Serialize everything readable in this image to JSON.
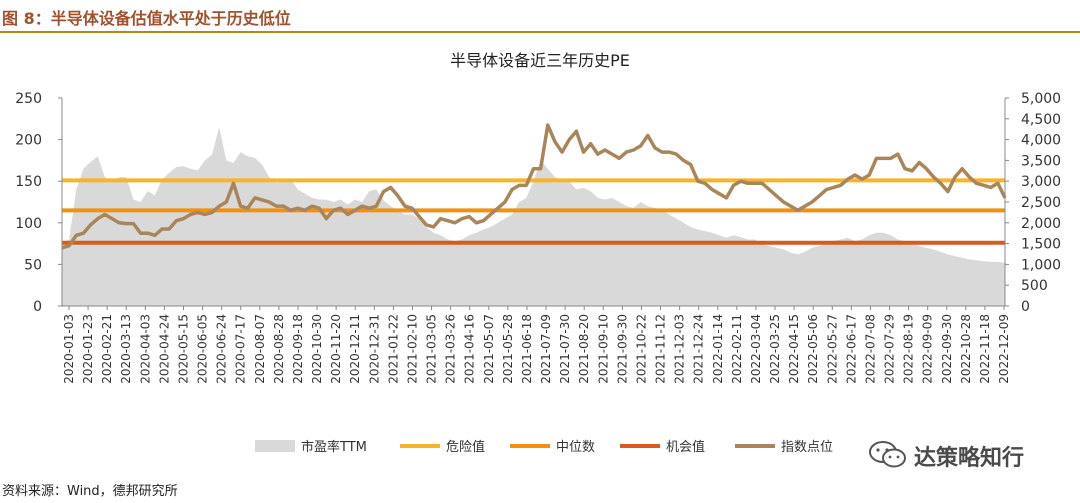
{
  "figure": {
    "title": "图 8：半导体设备估值水平处于历史低位",
    "source": "资料来源：Wind，德邦研究所",
    "watermark": "达策略知行"
  },
  "chart_data": {
    "type": "line",
    "title": "半导体设备近三年历史PE",
    "x_tick_labels": [
      "2020-01-03",
      "2020-01-23",
      "2020-02-21",
      "2020-03-13",
      "2020-04-03",
      "2020-04-24",
      "2020-05-15",
      "2020-06-05",
      "2020-06-24",
      "2020-07-17",
      "2020-08-07",
      "2020-08-28",
      "2020-09-18",
      "2020-10-30",
      "2020-11-20",
      "2020-12-11",
      "2020-12-31",
      "2021-01-22",
      "2021-02-10",
      "2021-03-05",
      "2021-03-26",
      "2021-04-16",
      "2021-05-07",
      "2021-05-28",
      "2021-06-18",
      "2021-07-09",
      "2021-07-30",
      "2021-08-20",
      "2021-09-10",
      "2021-09-30",
      "2021-10-22",
      "2021-11-12",
      "2021-12-03",
      "2021-12-24",
      "2022-01-14",
      "2022-02-11",
      "2022-03-04",
      "2022-03-25",
      "2022-04-15",
      "2022-05-06",
      "2022-05-27",
      "2022-06-17",
      "2022-07-08",
      "2022-07-29",
      "2022-08-19",
      "2022-09-09",
      "2022-09-30",
      "2022-10-28",
      "2022-11-18",
      "2022-12-09"
    ],
    "y_left": {
      "min": 0,
      "max": 250,
      "ticks": [
        0,
        50,
        100,
        150,
        200,
        250
      ]
    },
    "y_right": {
      "min": 0,
      "max": 5000,
      "ticks": [
        "0",
        "500",
        "1,000",
        "1,500",
        "2,000",
        "2,500",
        "3,000",
        "3,500",
        "4,000",
        "4,500",
        "5,000"
      ]
    },
    "legend_position": "bottom",
    "colors": {
      "pe_area": "#d9d9d9",
      "danger": "#f6b42c",
      "median": "#f29111",
      "opportunity": "#d85a1e",
      "index": "#a8865a"
    },
    "series": [
      {
        "name": "市盈率TTM",
        "kind": "area",
        "axis": "left",
        "values": [
          75,
          80,
          140,
          165,
          173,
          180,
          155,
          150,
          155,
          155,
          128,
          125,
          138,
          133,
          152,
          160,
          167,
          168,
          165,
          163,
          175,
          182,
          215,
          175,
          172,
          185,
          180,
          178,
          170,
          155,
          148,
          150,
          153,
          140,
          135,
          130,
          128,
          128,
          125,
          128,
          122,
          128,
          125,
          138,
          140,
          127,
          120,
          115,
          110,
          110,
          105,
          95,
          88,
          85,
          80,
          78,
          80,
          85,
          88,
          92,
          95,
          100,
          105,
          110,
          125,
          130,
          150,
          175,
          165,
          155,
          152,
          150,
          140,
          142,
          138,
          130,
          128,
          130,
          125,
          120,
          118,
          125,
          120,
          118,
          115,
          110,
          105,
          100,
          95,
          92,
          90,
          88,
          85,
          82,
          85,
          83,
          80,
          80,
          75,
          72,
          70,
          68,
          64,
          62,
          65,
          70,
          72,
          75,
          78,
          80,
          82,
          78,
          80,
          85,
          88,
          88,
          85,
          80,
          78,
          75,
          72,
          70,
          68,
          65,
          62,
          60,
          58,
          56,
          55,
          54,
          53,
          53,
          52
        ]
      },
      {
        "name": "危险值",
        "kind": "hline",
        "axis": "left",
        "value": 151
      },
      {
        "name": "中位数",
        "kind": "hline",
        "axis": "left",
        "value": 115
      },
      {
        "name": "机会值",
        "kind": "hline",
        "axis": "left",
        "value": 76
      },
      {
        "name": "指数点位",
        "kind": "line",
        "axis": "right",
        "values": [
          1400,
          1450,
          1700,
          1750,
          1950,
          2100,
          2200,
          2100,
          2000,
          1980,
          1980,
          1750,
          1750,
          1700,
          1850,
          1850,
          2050,
          2100,
          2200,
          2250,
          2200,
          2250,
          2400,
          2500,
          2950,
          2400,
          2350,
          2600,
          2550,
          2500,
          2400,
          2400,
          2300,
          2350,
          2300,
          2400,
          2350,
          2100,
          2300,
          2350,
          2200,
          2300,
          2400,
          2350,
          2400,
          2750,
          2850,
          2650,
          2400,
          2350,
          2150,
          1950,
          1900,
          2100,
          2050,
          2000,
          2100,
          2150,
          2000,
          2050,
          2200,
          2350,
          2500,
          2800,
          2900,
          2900,
          3300,
          3300,
          4350,
          3950,
          3700,
          4000,
          4200,
          3700,
          3900,
          3650,
          3750,
          3650,
          3550,
          3700,
          3750,
          3850,
          4100,
          3800,
          3700,
          3700,
          3650,
          3500,
          3400,
          3000,
          2950,
          2800,
          2700,
          2600,
          2900,
          3000,
          2950,
          2950,
          2950,
          2800,
          2650,
          2500,
          2400,
          2300,
          2400,
          2500,
          2650,
          2800,
          2850,
          2900,
          3050,
          3150,
          3050,
          3150,
          3550,
          3550,
          3550,
          3650,
          3300,
          3250,
          3450,
          3300,
          3100,
          2950,
          2750,
          3100,
          3300,
          3100,
          2950,
          2900,
          2850,
          2950,
          2600
        ]
      }
    ]
  }
}
